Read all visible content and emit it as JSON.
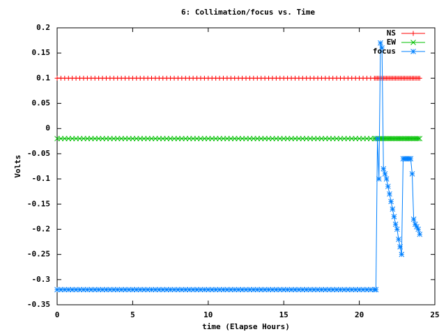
{
  "chart_data": {
    "type": "line",
    "title": "6: Collimation/focus vs. Time",
    "x_label": "time (Elapse Hours)",
    "y_label": "Volts",
    "xlim": [
      0,
      25
    ],
    "xticks": [
      0,
      5,
      10,
      15,
      20,
      25
    ],
    "ylim": [
      -0.35,
      0.2
    ],
    "yticks": [
      -0.35,
      -0.3,
      -0.25,
      -0.2,
      -0.15,
      -0.1,
      -0.05,
      0,
      0.05,
      0.1,
      0.15,
      0.2
    ],
    "legend": "top-right",
    "x": [
      0,
      0.25,
      0.5,
      0.75,
      1,
      1.25,
      1.5,
      1.75,
      2,
      2.25,
      2.5,
      2.75,
      3,
      3.25,
      3.5,
      3.75,
      4,
      4.25,
      4.5,
      4.75,
      5,
      5.25,
      5.5,
      5.75,
      6,
      6.25,
      6.5,
      6.75,
      7,
      7.25,
      7.5,
      7.75,
      8,
      8.25,
      8.5,
      8.75,
      9,
      9.25,
      9.5,
      9.75,
      10,
      10.25,
      10.5,
      10.75,
      11,
      11.25,
      11.5,
      11.75,
      12,
      12.25,
      12.5,
      12.75,
      13,
      13.25,
      13.5,
      13.75,
      14,
      14.25,
      14.5,
      14.75,
      15,
      15.25,
      15.5,
      15.75,
      16,
      16.25,
      16.5,
      16.75,
      17,
      17.25,
      17.5,
      17.75,
      18,
      18.25,
      18.5,
      18.75,
      19,
      19.25,
      19.5,
      19.75,
      20,
      20.25,
      20.5,
      20.75,
      21,
      21.1,
      21.2,
      21.3,
      21.4,
      21.5,
      21.6,
      21.7,
      21.8,
      21.9,
      22,
      22.1,
      22.2,
      22.3,
      22.4,
      22.5,
      22.6,
      22.7,
      22.8,
      22.9,
      23,
      23.1,
      23.2,
      23.3,
      23.4,
      23.5,
      23.6,
      23.7,
      23.8,
      23.9,
      24
    ],
    "series": [
      {
        "name": "NS",
        "color": "#ff0000",
        "marker": "plus",
        "values": [
          0.1,
          0.1,
          0.1,
          0.1,
          0.1,
          0.1,
          0.1,
          0.1,
          0.1,
          0.1,
          0.1,
          0.1,
          0.1,
          0.1,
          0.1,
          0.1,
          0.1,
          0.1,
          0.1,
          0.1,
          0.1,
          0.1,
          0.1,
          0.1,
          0.1,
          0.1,
          0.1,
          0.1,
          0.1,
          0.1,
          0.1,
          0.1,
          0.1,
          0.1,
          0.1,
          0.1,
          0.1,
          0.1,
          0.1,
          0.1,
          0.1,
          0.1,
          0.1,
          0.1,
          0.1,
          0.1,
          0.1,
          0.1,
          0.1,
          0.1,
          0.1,
          0.1,
          0.1,
          0.1,
          0.1,
          0.1,
          0.1,
          0.1,
          0.1,
          0.1,
          0.1,
          0.1,
          0.1,
          0.1,
          0.1,
          0.1,
          0.1,
          0.1,
          0.1,
          0.1,
          0.1,
          0.1,
          0.1,
          0.1,
          0.1,
          0.1,
          0.1,
          0.1,
          0.1,
          0.1,
          0.1,
          0.1,
          0.1,
          0.1,
          0.1,
          0.1,
          0.1,
          0.1,
          0.1,
          0.1,
          0.1,
          0.1,
          0.1,
          0.1,
          0.1,
          0.1,
          0.1,
          0.1,
          0.1,
          0.1,
          0.1,
          0.1,
          0.1,
          0.1,
          0.1,
          0.1,
          0.1,
          0.1,
          0.1,
          0.1,
          0.1,
          0.1,
          0.1,
          0.1,
          0.1
        ]
      },
      {
        "name": "EW",
        "color": "#00c000",
        "marker": "cross",
        "values": [
          -0.02,
          -0.02,
          -0.02,
          -0.02,
          -0.02,
          -0.02,
          -0.02,
          -0.02,
          -0.02,
          -0.02,
          -0.02,
          -0.02,
          -0.02,
          -0.02,
          -0.02,
          -0.02,
          -0.02,
          -0.02,
          -0.02,
          -0.02,
          -0.02,
          -0.02,
          -0.02,
          -0.02,
          -0.02,
          -0.02,
          -0.02,
          -0.02,
          -0.02,
          -0.02,
          -0.02,
          -0.02,
          -0.02,
          -0.02,
          -0.02,
          -0.02,
          -0.02,
          -0.02,
          -0.02,
          -0.02,
          -0.02,
          -0.02,
          -0.02,
          -0.02,
          -0.02,
          -0.02,
          -0.02,
          -0.02,
          -0.02,
          -0.02,
          -0.02,
          -0.02,
          -0.02,
          -0.02,
          -0.02,
          -0.02,
          -0.02,
          -0.02,
          -0.02,
          -0.02,
          -0.02,
          -0.02,
          -0.02,
          -0.02,
          -0.02,
          -0.02,
          -0.02,
          -0.02,
          -0.02,
          -0.02,
          -0.02,
          -0.02,
          -0.02,
          -0.02,
          -0.02,
          -0.02,
          -0.02,
          -0.02,
          -0.02,
          -0.02,
          -0.02,
          -0.02,
          -0.02,
          -0.02,
          -0.02,
          -0.02,
          -0.02,
          -0.02,
          -0.02,
          -0.02,
          -0.02,
          -0.02,
          -0.02,
          -0.02,
          -0.02,
          -0.02,
          -0.02,
          -0.02,
          -0.02,
          -0.02,
          -0.02,
          -0.02,
          -0.02,
          -0.02,
          -0.02,
          -0.02,
          -0.02,
          -0.02,
          -0.02,
          -0.02,
          -0.02,
          -0.02,
          -0.02,
          -0.02,
          -0.02
        ]
      },
      {
        "name": "focus",
        "color": "#0080ff",
        "marker": "star",
        "values": [
          -0.32,
          -0.32,
          -0.32,
          -0.32,
          -0.32,
          -0.32,
          -0.32,
          -0.32,
          -0.32,
          -0.32,
          -0.32,
          -0.32,
          -0.32,
          -0.32,
          -0.32,
          -0.32,
          -0.32,
          -0.32,
          -0.32,
          -0.32,
          -0.32,
          -0.32,
          -0.32,
          -0.32,
          -0.32,
          -0.32,
          -0.32,
          -0.32,
          -0.32,
          -0.32,
          -0.32,
          -0.32,
          -0.32,
          -0.32,
          -0.32,
          -0.32,
          -0.32,
          -0.32,
          -0.32,
          -0.32,
          -0.32,
          -0.32,
          -0.32,
          -0.32,
          -0.32,
          -0.32,
          -0.32,
          -0.32,
          -0.32,
          -0.32,
          -0.32,
          -0.32,
          -0.32,
          -0.32,
          -0.32,
          -0.32,
          -0.32,
          -0.32,
          -0.32,
          -0.32,
          -0.32,
          -0.32,
          -0.32,
          -0.32,
          -0.32,
          -0.32,
          -0.32,
          -0.32,
          -0.32,
          -0.32,
          -0.32,
          -0.32,
          -0.32,
          -0.32,
          -0.32,
          -0.32,
          -0.32,
          -0.32,
          -0.32,
          -0.32,
          -0.32,
          -0.32,
          -0.32,
          -0.32,
          -0.32,
          -0.32,
          -0.02,
          -0.1,
          0.17,
          0.16,
          -0.08,
          -0.09,
          -0.1,
          -0.115,
          -0.13,
          -0.145,
          -0.16,
          -0.175,
          -0.19,
          -0.2,
          -0.22,
          -0.235,
          -0.25,
          -0.06,
          -0.06,
          -0.06,
          -0.06,
          -0.06,
          -0.06,
          -0.09,
          -0.18,
          -0.19,
          -0.195,
          -0.2,
          -0.21
        ]
      }
    ]
  }
}
